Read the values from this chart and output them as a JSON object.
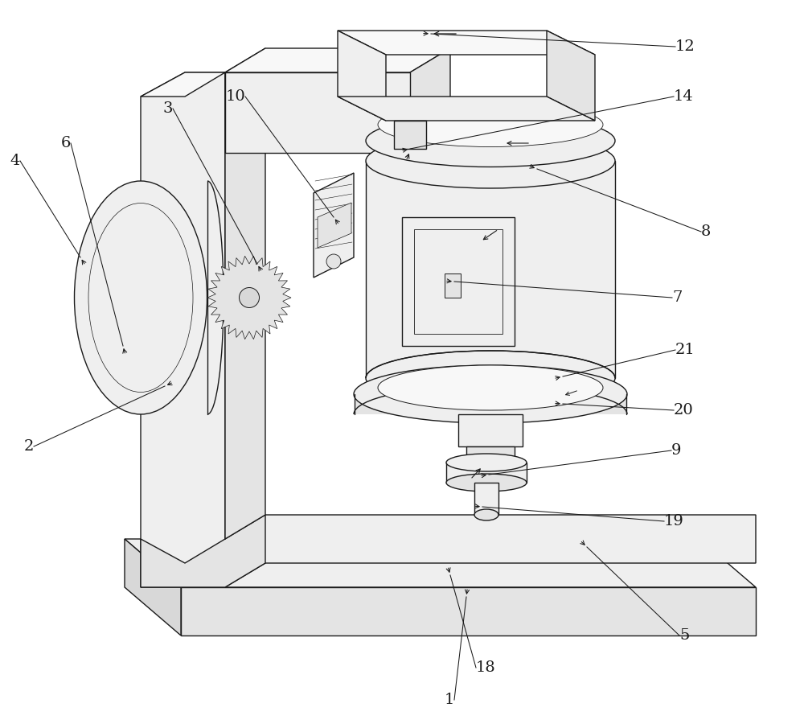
{
  "bg": "#ffffff",
  "lc": "#1a1a1a",
  "lw": 1.0,
  "fig_w": 10.0,
  "fig_h": 9.05,
  "gray1": "#f8f8f8",
  "gray2": "#efefef",
  "gray3": "#e4e4e4",
  "gray4": "#d8d8d8"
}
